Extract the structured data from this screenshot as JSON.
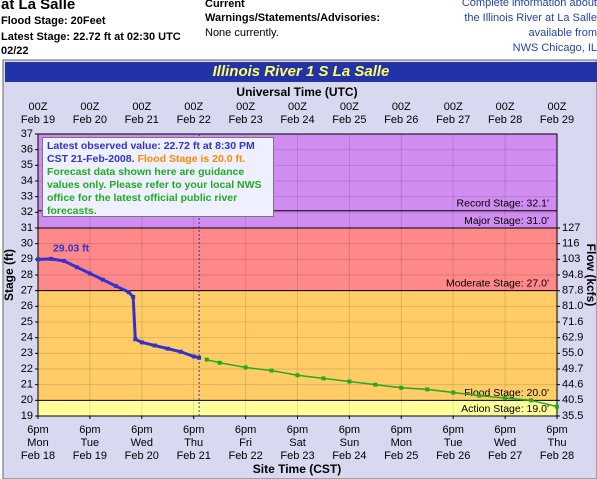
{
  "header": {
    "site": "at La Salle",
    "flood_stage": "Flood Stage: 20Feet",
    "latest_stage": "Latest Stage: 22.72 ft at 02:30 UTC",
    "latest_date": "02/22",
    "warnings_title": [
      "Current",
      "Warnings/Statements/Advisories:"
    ],
    "warnings": "None currently.",
    "info": [
      "Complete information about",
      "the Illinois River at La Salle",
      "available from",
      "NWS Chicago, IL"
    ]
  },
  "chart_data": {
    "type": "line",
    "title": "Illinois River 1 S La Salle",
    "x_label_top": "Universal Time (UTC)",
    "x_label": "Site Time (CST)",
    "y_label": "Stage (ft)",
    "y2_label": "Flow (kcfs)",
    "xlim": [
      "2008-02-19T00:00Z",
      "2008-02-29T00:00Z"
    ],
    "xticks": [
      {
        "value": "2008-02-19T00:00Z",
        "label": [
          "00Z",
          "Feb 19"
        ],
        "site_label": [
          "6pm",
          "Mon",
          "Feb 18"
        ]
      },
      {
        "value": "2008-02-20T00:00Z",
        "label": [
          "00Z",
          "Feb 20"
        ],
        "site_label": [
          "6pm",
          "Tue",
          "Feb 19"
        ]
      },
      {
        "value": "2008-02-21T00:00Z",
        "label": [
          "00Z",
          "Feb 21"
        ],
        "site_label": [
          "6pm",
          "Wed",
          "Feb 20"
        ]
      },
      {
        "value": "2008-02-22T00:00Z",
        "label": [
          "00Z",
          "Feb 22"
        ],
        "site_label": [
          "6pm",
          "Thu",
          "Feb 21"
        ]
      },
      {
        "value": "2008-02-23T00:00Z",
        "label": [
          "00Z",
          "Feb 23"
        ],
        "site_label": [
          "6pm",
          "Fri",
          "Feb 22"
        ]
      },
      {
        "value": "2008-02-24T00:00Z",
        "label": [
          "00Z",
          "Feb 24"
        ],
        "site_label": [
          "6pm",
          "Sat",
          "Feb 23"
        ]
      },
      {
        "value": "2008-02-25T00:00Z",
        "label": [
          "00Z",
          "Feb 25"
        ],
        "site_label": [
          "6pm",
          "Sun",
          "Feb 24"
        ]
      },
      {
        "value": "2008-02-26T00:00Z",
        "label": [
          "00Z",
          "Feb 26"
        ],
        "site_label": [
          "6pm",
          "Mon",
          "Feb 25"
        ]
      },
      {
        "value": "2008-02-27T00:00Z",
        "label": [
          "00Z",
          "Feb 27"
        ],
        "site_label": [
          "6pm",
          "Tue",
          "Feb 26"
        ]
      },
      {
        "value": "2008-02-28T00:00Z",
        "label": [
          "00Z",
          "Feb 28"
        ],
        "site_label": [
          "6pm",
          "Wed",
          "Feb 27"
        ]
      },
      {
        "value": "2008-02-29T00:00Z",
        "label": [
          "00Z",
          "Feb 29"
        ],
        "site_label": [
          "6pm",
          "Thu",
          "Feb 28"
        ]
      }
    ],
    "ylim": [
      19,
      37
    ],
    "yticks": [
      19,
      20,
      21,
      22,
      23,
      24,
      25,
      26,
      27,
      28,
      29,
      30,
      31,
      32,
      33,
      34,
      35,
      36,
      37
    ],
    "y2ticks": [
      {
        "value": 35.5,
        "label": "35.5",
        "stage": 19
      },
      {
        "value": 40.5,
        "label": "40.5",
        "stage": 20
      },
      {
        "value": 44.6,
        "label": "44.6",
        "stage": 21
      },
      {
        "value": 49.7,
        "label": "49.7",
        "stage": 22
      },
      {
        "value": 55,
        "label": "55.0",
        "stage": 23
      },
      {
        "value": 62.9,
        "label": "62.9",
        "stage": 24
      },
      {
        "value": 71.6,
        "label": "71.6",
        "stage": 25
      },
      {
        "value": 81,
        "label": "81.0",
        "stage": 26
      },
      {
        "value": 87.8,
        "label": "87.8",
        "stage": 27
      },
      {
        "value": 94.8,
        "label": "94.8",
        "stage": 28
      },
      {
        "value": 103,
        "label": "103",
        "stage": 29
      },
      {
        "value": 116,
        "label": "116",
        "stage": 30
      },
      {
        "value": 127,
        "label": "127",
        "stage": 31
      }
    ],
    "grid": true,
    "stages": [
      {
        "label": "Action Stage: 19.0'",
        "value": 19,
        "color": "#ffff99"
      },
      {
        "label": "Flood Stage: 20.0'",
        "value": 20,
        "color": "#ffcc66"
      },
      {
        "label": "Moderate Stage: 27.0'",
        "value": 27,
        "color": "#ff8888"
      },
      {
        "label": "Major Stage: 31.0'",
        "value": 31,
        "color": "#d08cf0"
      },
      {
        "label": "Record Stage: 32.1'",
        "value": 32.1
      }
    ],
    "series": [
      {
        "name": "Observed",
        "color": "#3333cc",
        "x": [
          "2008-02-19T00:00Z",
          "2008-02-19T06:00Z",
          "2008-02-19T12:00Z",
          "2008-02-19T18:00Z",
          "2008-02-20T00:00Z",
          "2008-02-20T06:00Z",
          "2008-02-20T12:00Z",
          "2008-02-20T18:00Z",
          "2008-02-20T20:00Z",
          "2008-02-20T21:00Z",
          "2008-02-21T00:00Z",
          "2008-02-21T06:00Z",
          "2008-02-21T12:00Z",
          "2008-02-21T18:00Z",
          "2008-02-22T00:00Z",
          "2008-02-22T02:30Z"
        ],
        "values": [
          29.0,
          29.03,
          28.9,
          28.5,
          28.1,
          27.7,
          27.3,
          26.9,
          26.6,
          23.9,
          23.7,
          23.5,
          23.3,
          23.1,
          22.8,
          22.72
        ],
        "value_labels": [
          null,
          "29.03 ft",
          null,
          null,
          null,
          null,
          null,
          null,
          null,
          null,
          null,
          null,
          null,
          null,
          null,
          null
        ]
      },
      {
        "name": "Forecast",
        "color": "#22aa22",
        "x": [
          "2008-02-22T06:00Z",
          "2008-02-22T12:00Z",
          "2008-02-23T00:00Z",
          "2008-02-23T12:00Z",
          "2008-02-24T00:00Z",
          "2008-02-24T12:00Z",
          "2008-02-25T00:00Z",
          "2008-02-25T12:00Z",
          "2008-02-26T00:00Z",
          "2008-02-26T12:00Z",
          "2008-02-27T00:00Z",
          "2008-02-27T12:00Z",
          "2008-02-28T00:00Z",
          "2008-02-28T12:00Z",
          "2008-02-29T00:00Z"
        ],
        "values": [
          22.6,
          22.4,
          22.1,
          21.9,
          21.6,
          21.4,
          21.2,
          21.0,
          20.8,
          20.7,
          20.5,
          20.3,
          20.15,
          20.0,
          19.6
        ]
      }
    ],
    "note": {
      "observed": "Latest observed value: 22.72 ft at 8:30 PM CST 21-Feb-2008.",
      "flood": "Flood Stage is 20.0 ft.",
      "guidance": "Forecast data shown here are guidance values only. Please refer to your local NWS office for the latest official public river forecasts."
    }
  }
}
